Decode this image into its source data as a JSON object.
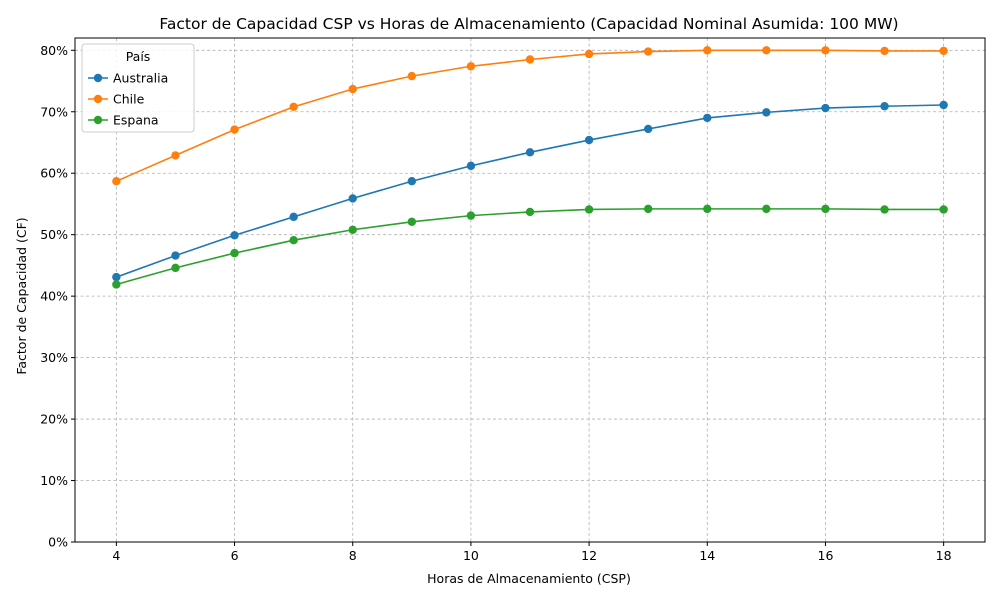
{
  "chart_data": {
    "type": "line",
    "title": "Factor de Capacidad CSP vs Horas de Almacenamiento (Capacidad Nominal Asumida: 100 MW)",
    "xlabel": "Horas de Almacenamiento (CSP)",
    "ylabel": "Factor de Capacidad (CF)",
    "xlim": [
      3.3,
      18.7
    ],
    "ylim": [
      0,
      0.82
    ],
    "x_ticks": [
      4,
      6,
      8,
      10,
      12,
      14,
      16,
      18
    ],
    "y_ticks": [
      0,
      0.1,
      0.2,
      0.3,
      0.4,
      0.5,
      0.6,
      0.7,
      0.8
    ],
    "y_tick_labels": [
      "0%",
      "10%",
      "20%",
      "30%",
      "40%",
      "50%",
      "60%",
      "70%",
      "80%"
    ],
    "grid": true,
    "legend": {
      "title": "País",
      "placement": "top-left"
    },
    "x": [
      4,
      5,
      6,
      7,
      8,
      9,
      10,
      11,
      12,
      13,
      14,
      15,
      16,
      17,
      18
    ],
    "series": [
      {
        "name": "Australia",
        "color": "#1f77b4",
        "values": [
          0.431,
          0.466,
          0.499,
          0.529,
          0.559,
          0.587,
          0.612,
          0.634,
          0.654,
          0.672,
          0.69,
          0.699,
          0.706,
          0.709,
          0.711
        ]
      },
      {
        "name": "Chile",
        "color": "#ff7f0e",
        "values": [
          0.587,
          0.629,
          0.671,
          0.708,
          0.737,
          0.758,
          0.774,
          0.785,
          0.794,
          0.798,
          0.8,
          0.8,
          0.8,
          0.799,
          0.799
        ]
      },
      {
        "name": "Espana",
        "color": "#2ca02c",
        "values": [
          0.419,
          0.446,
          0.47,
          0.491,
          0.508,
          0.521,
          0.531,
          0.537,
          0.541,
          0.542,
          0.542,
          0.542,
          0.542,
          0.541,
          0.541
        ]
      }
    ]
  }
}
